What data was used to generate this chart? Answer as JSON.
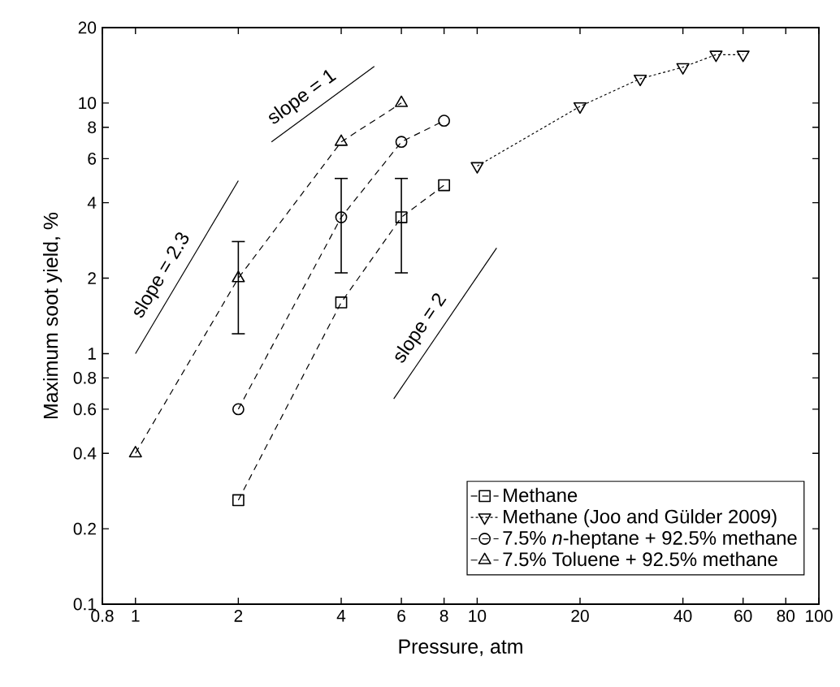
{
  "chart_data": {
    "type": "line",
    "xlabel": "Pressure, atm",
    "ylabel": "Maximum soot yield, %",
    "log": "xy",
    "xlim": [
      0.8,
      100
    ],
    "ylim": [
      0.1,
      20
    ],
    "xticks": [
      0.8,
      1,
      2,
      4,
      6,
      8,
      10,
      20,
      40,
      60,
      80,
      100
    ],
    "yticks": [
      0.1,
      0.2,
      0.4,
      0.6,
      0.8,
      1,
      2,
      4,
      6,
      8,
      10,
      20
    ],
    "legend": "bottom right",
    "grid": false,
    "series": [
      {
        "name": "Methane",
        "color": "#000000",
        "marker": "square",
        "line_style": "dashed",
        "x": [
          2,
          4,
          6,
          8
        ],
        "values": [
          0.26,
          1.6,
          3.5,
          4.7
        ],
        "errors": [
          null,
          null,
          [
            2.1,
            5
          ],
          null
        ]
      },
      {
        "name": "Methane (Joo and Gülder 2009)",
        "color": "#000000",
        "marker": "triangle-down",
        "line_style": "dotted",
        "x": [
          10,
          20,
          30,
          40,
          50,
          60
        ],
        "values": [
          5.6,
          9.7,
          12.5,
          13.9,
          15.6,
          15.6
        ]
      },
      {
        "name": "7.5% *n*-heptane + 92.5% methane",
        "color": "#000000",
        "marker": "circle",
        "line_style": "dashed",
        "x": [
          2,
          4,
          6,
          8
        ],
        "values": [
          0.6,
          3.5,
          7,
          8.5
        ],
        "errors": [
          null,
          [
            2.1,
            5
          ],
          null,
          null
        ]
      },
      {
        "name": "7.5% Toluene + 92.5% methane",
        "color": "#000000",
        "marker": "triangle",
        "line_style": "dashed",
        "x": [
          1,
          2,
          4,
          6
        ],
        "values": [
          0.4,
          2,
          7,
          10
        ],
        "errors": [
          null,
          [
            1.2,
            2.8
          ],
          null,
          null
        ]
      },
      {
        "color": "#000000",
        "marker": "none",
        "line_style": "solid",
        "x": [
          2.5,
          5
        ],
        "values": [
          7,
          14
        ]
      },
      {
        "color": "#000000",
        "marker": "none",
        "line_style": "solid",
        "x": [
          1,
          2
        ],
        "values": [
          1,
          4.9
        ]
      },
      {
        "color": "#000000",
        "marker": "none",
        "line_style": "solid",
        "x": [
          5.7,
          11.4
        ],
        "values": [
          0.66,
          2.64
        ]
      }
    ],
    "annotations": [
      "slope = 1",
      "slope = 2.3",
      "slope = 2"
    ]
  }
}
